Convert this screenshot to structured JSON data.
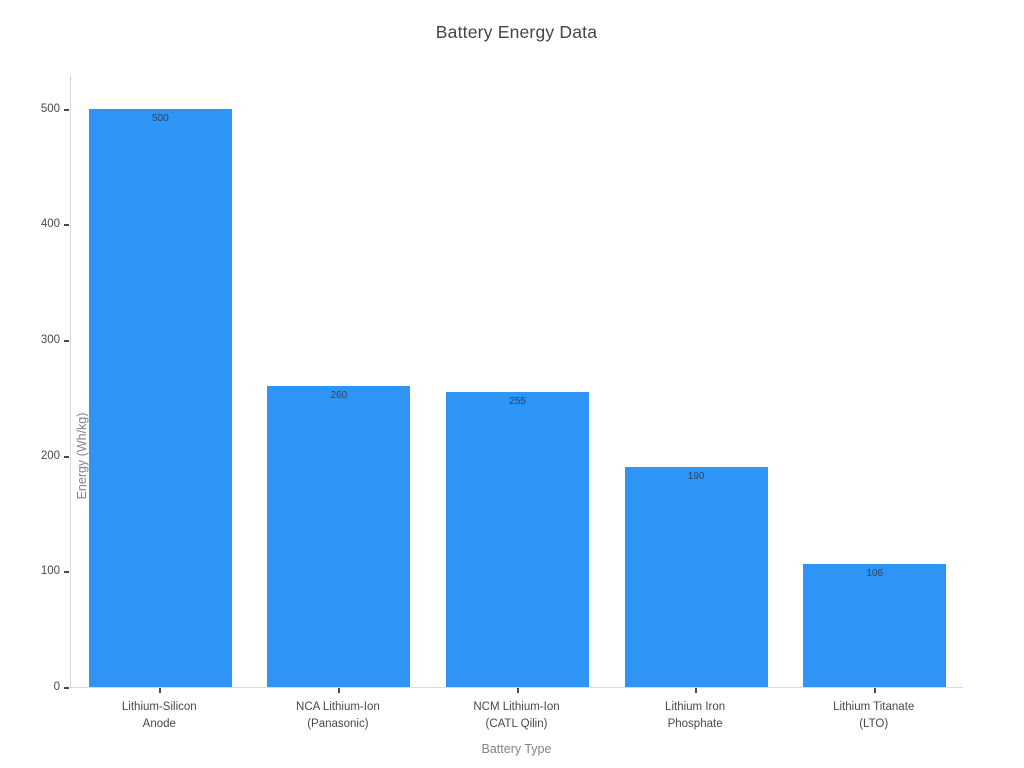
{
  "chart_data": {
    "type": "bar",
    "title": "Battery Energy Data",
    "xlabel": "Battery Type",
    "ylabel": "Energy (Wh/kg)",
    "categories": [
      "Lithium-Silicon\nAnode",
      "NCA Lithium-Ion\n(Panasonic)",
      "NCM Lithium-Ion\n(CATL Qilin)",
      "Lithium Iron\nPhosphate",
      "Lithium Titanate\n(LTO)"
    ],
    "values": [
      500,
      260,
      255,
      190,
      106
    ],
    "value_labels": [
      "500",
      "260",
      "255",
      "190",
      "106"
    ],
    "yticks": [
      0,
      100,
      200,
      300,
      400,
      500
    ],
    "ylim": [
      0,
      530
    ],
    "legend": "none",
    "grid": false,
    "bar_color": "#2e94f6",
    "value_label_color": "#33415c",
    "tick_mark_color": "#444a50",
    "axis_line_color": "#d9d9d9",
    "background_color": "#ffffff"
  }
}
